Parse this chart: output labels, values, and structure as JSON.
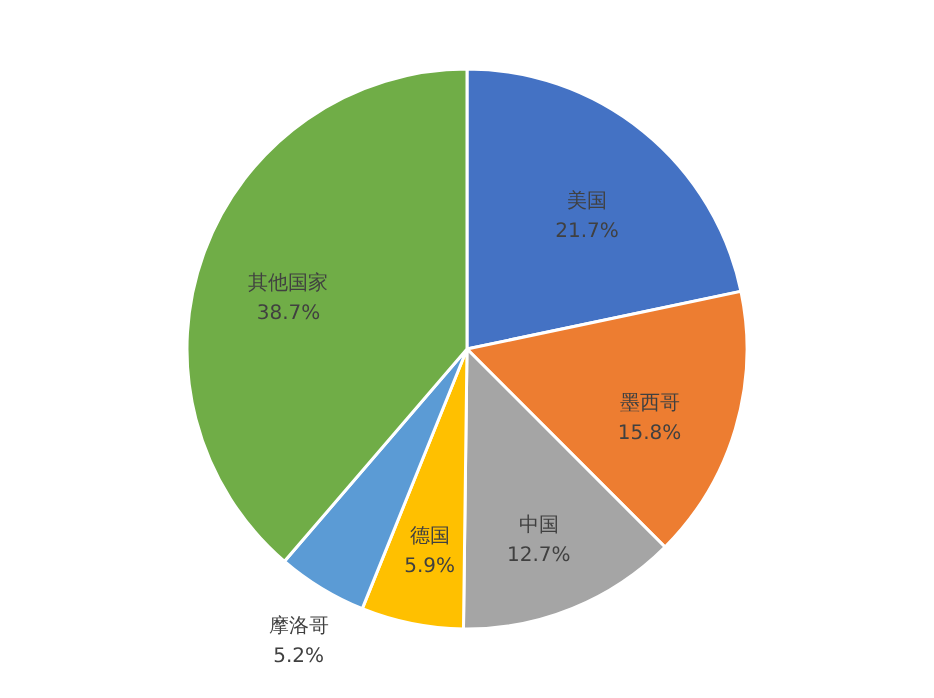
{
  "chart_data": {
    "type": "pie",
    "categories": [
      "美国",
      "墨西哥",
      "中国",
      "德国",
      "摩洛哥",
      "其他国家"
    ],
    "values": [
      21.7,
      15.8,
      12.7,
      5.9,
      5.2,
      38.7
    ],
    "colors": [
      "#4472c4",
      "#ed7d31",
      "#a5a5a5",
      "#ffc000",
      "#5b9bd5",
      "#70ad47"
    ],
    "value_labels": [
      "21.7%",
      "15.8%",
      "12.7%",
      "5.9%",
      "5.2%",
      "38.7%"
    ]
  }
}
